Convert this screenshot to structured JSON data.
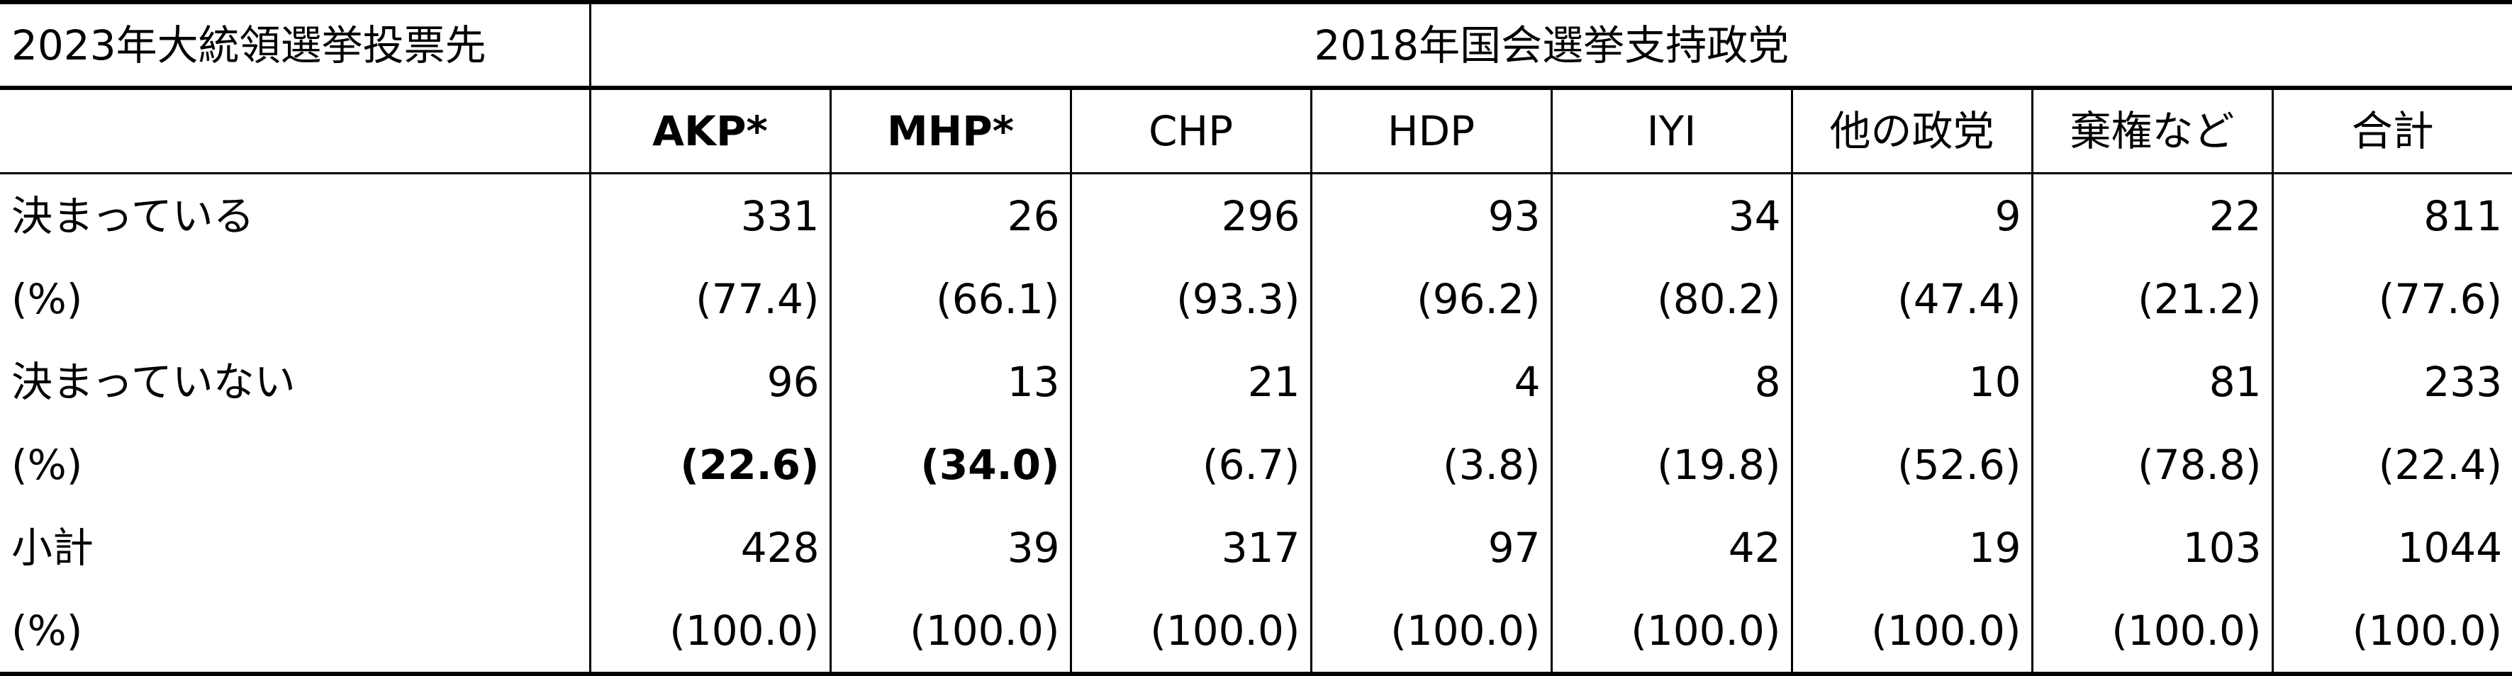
{
  "header": {
    "row_label_title": "2023年大統領選挙投票先",
    "group_title": "2018年国会選挙支持政党"
  },
  "columns": [
    {
      "label": "AKP*",
      "bold": true
    },
    {
      "label": "MHP*",
      "bold": true
    },
    {
      "label": "CHP",
      "bold": false
    },
    {
      "label": "HDP",
      "bold": false
    },
    {
      "label": "IYI",
      "bold": false
    },
    {
      "label": "他の政党",
      "bold": false
    },
    {
      "label": "棄権など",
      "bold": false
    },
    {
      "label": "合計",
      "bold": false
    }
  ],
  "rows": [
    {
      "label": "決まっている",
      "values": [
        "331",
        "26",
        "296",
        "93",
        "34",
        "9",
        "22",
        "811"
      ]
    },
    {
      "label": "(%)",
      "values": [
        "(77.4)",
        "(66.1)",
        "(93.3)",
        "(96.2)",
        "(80.2)",
        "(47.4)",
        "(21.2)",
        "(77.6)"
      ]
    },
    {
      "label": "決まっていない",
      "values": [
        "96",
        "13",
        "21",
        "4",
        "8",
        "10",
        "81",
        "233"
      ]
    },
    {
      "label": "(%)",
      "values": [
        "(22.6)",
        "(34.0)",
        "(6.7)",
        "(3.8)",
        "(19.8)",
        "(52.6)",
        "(78.8)",
        "(22.4)"
      ],
      "bold_columns": [
        0,
        1
      ]
    },
    {
      "label": "小計",
      "values": [
        "428",
        "39",
        "317",
        "97",
        "42",
        "19",
        "103",
        "1044"
      ]
    },
    {
      "label": "(%)",
      "values": [
        "(100.0)",
        "(100.0)",
        "(100.0)",
        "(100.0)",
        "(100.0)",
        "(100.0)",
        "(100.0)",
        "(100.0)"
      ]
    }
  ]
}
